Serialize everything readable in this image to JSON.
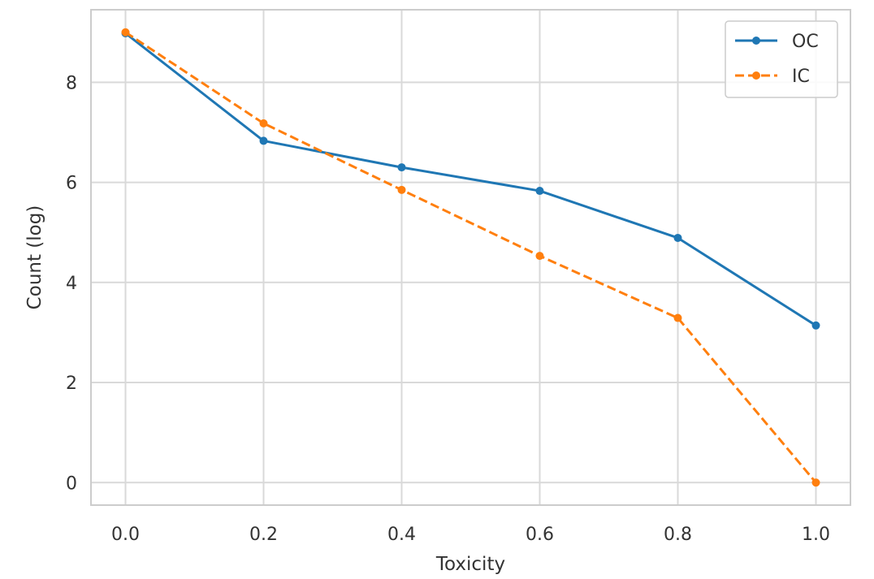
{
  "chart_data": {
    "type": "line",
    "title": "",
    "xlabel": "Toxicity",
    "ylabel": "Count (log)",
    "xlim": [
      -0.05,
      1.05
    ],
    "ylim": [
      -0.45,
      9.45
    ],
    "xticks": [
      0.0,
      0.2,
      0.4,
      0.6,
      0.8,
      1.0
    ],
    "xtick_labels": [
      "0.0",
      "0.2",
      "0.4",
      "0.6",
      "0.8",
      "1.0"
    ],
    "yticks": [
      0,
      2,
      4,
      6,
      8
    ],
    "ytick_labels": [
      "0",
      "2",
      "4",
      "6",
      "8"
    ],
    "grid": true,
    "legend_position": "top-right",
    "x": [
      0.0,
      0.2,
      0.4,
      0.6,
      0.8,
      1.0
    ],
    "series": [
      {
        "name": "OC",
        "color": "#1f77b4",
        "dash": "solid",
        "values": [
          8.98,
          6.83,
          6.3,
          5.83,
          4.89,
          3.14
        ]
      },
      {
        "name": "IC",
        "color": "#ff7f0e",
        "dash": "dashed",
        "values": [
          9.0,
          7.18,
          5.85,
          4.53,
          3.29,
          0.0
        ]
      }
    ]
  }
}
